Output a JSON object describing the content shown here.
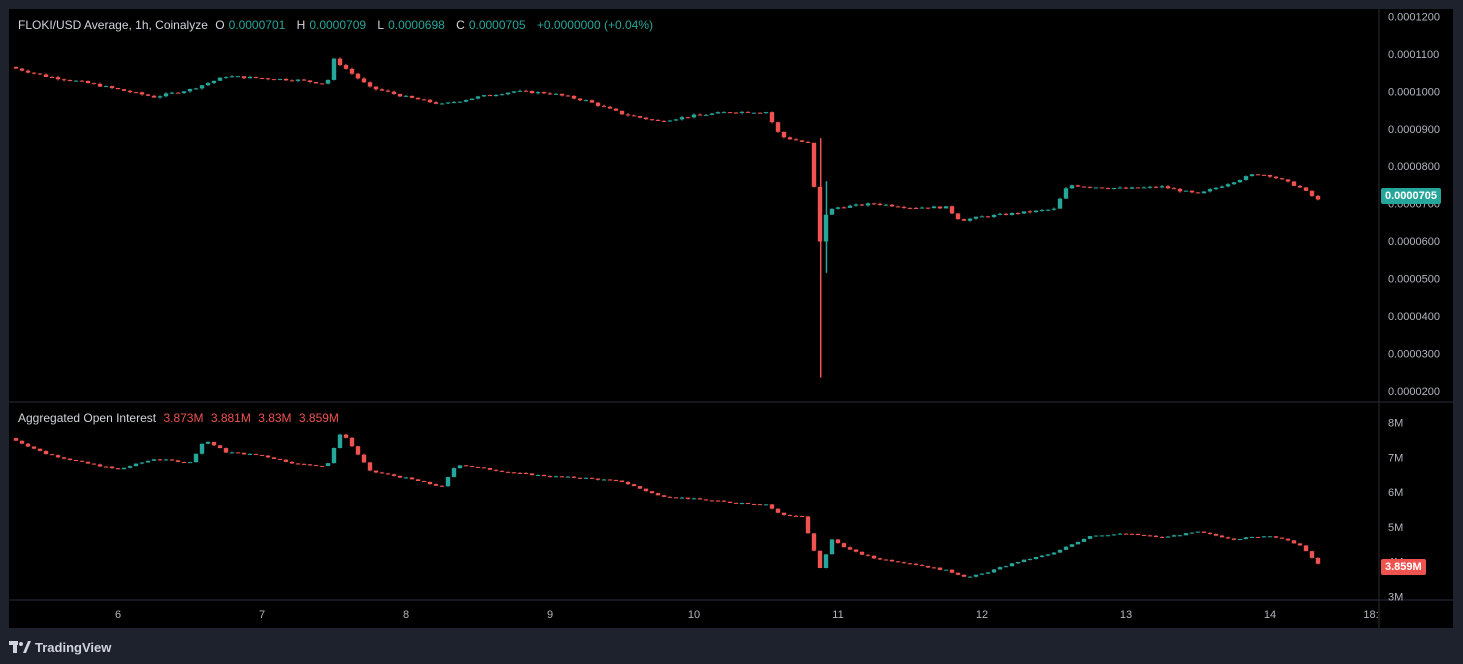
{
  "colors": {
    "up": "#26a69a",
    "down": "#ef5350",
    "background": "#000000",
    "frame": "#1e222d",
    "axis_text": "#b2b5be"
  },
  "price_legend": {
    "symbol": "FLOKI/USD Average, 1h, Coinalyze",
    "o_label": "O",
    "o_value": "0.0000701",
    "h_label": "H",
    "h_value": "0.0000709",
    "l_label": "L",
    "l_value": "0.0000698",
    "c_label": "C",
    "c_value": "0.0000705",
    "change": "+0.0000000 (+0.04%)"
  },
  "oi_legend": {
    "title": "Aggregated Open Interest",
    "o_value": "3.873M",
    "h_value": "3.881M",
    "l_value": "3.83M",
    "c_value": "3.859M"
  },
  "price_last_label": "0.0000705",
  "oi_last_label": "3.859M",
  "footer": {
    "brand": "TradingView",
    "logo_icon": "tradingview-logo-icon"
  },
  "chart_data": [
    {
      "type": "line",
      "name": "price",
      "y_axis_ticks": [
        "0.0001200",
        "0.0001100",
        "0.0001000",
        "0.0000900",
        "0.0000800",
        "0.0000700",
        "0.0000600",
        "0.0000500",
        "0.0000400",
        "0.0000300",
        "0.0000200"
      ],
      "y_axis_values": [
        0.00012,
        0.00011,
        0.0001,
        9e-05,
        8e-05,
        7e-05,
        6e-05,
        5e-05,
        4e-05,
        3e-05,
        2e-05
      ],
      "ylim": [
        1.7e-05,
        0.000122
      ],
      "x_axis_ticks": [
        "6",
        "7",
        "8",
        "9",
        "10",
        "11",
        "12",
        "13",
        "14",
        "18:"
      ],
      "x": [
        5.25,
        5.5,
        5.75,
        6.0,
        6.25,
        6.5,
        6.75,
        7.0,
        7.25,
        7.45,
        7.5,
        7.75,
        8.0,
        8.25,
        8.5,
        8.75,
        9.0,
        9.25,
        9.5,
        9.75,
        10.0,
        10.25,
        10.5,
        10.6,
        10.8,
        10.88,
        10.92,
        11.0,
        11.25,
        11.5,
        11.75,
        11.85,
        12.0,
        12.25,
        12.5,
        12.6,
        12.75,
        13.0,
        13.25,
        13.5,
        13.75,
        13.9,
        14.0,
        14.2,
        14.35
      ],
      "y": [
        0.0001065,
        0.000104,
        0.0001025,
        0.0001005,
        9.85e-05,
        0.0001005,
        0.000104,
        0.0001035,
        0.000103,
        0.000102,
        0.0001085,
        0.000101,
        9.85e-05,
        9.65e-05,
        9.85e-05,
        0.0001,
        9.95e-05,
        9.75e-05,
        9.4e-05,
        9.2e-05,
        9.35e-05,
        9.45e-05,
        9.45e-05,
        8.8e-05,
        8.6e-05,
        5.8e-05,
        6.8e-05,
        6.9e-05,
        7e-05,
        6.9e-05,
        6.9e-05,
        6.55e-05,
        6.65e-05,
        6.75e-05,
        6.85e-05,
        7.5e-05,
        7.45e-05,
        7.4e-05,
        7.45e-05,
        7.25e-05,
        7.6e-05,
        7.8e-05,
        7.75e-05,
        7.45e-05,
        7.05e-05
      ],
      "spike": {
        "x": 10.88,
        "high": 8.75e-05,
        "low": 2.35e-05
      },
      "y_scale": "linear"
    },
    {
      "type": "line",
      "name": "Aggregated Open Interest",
      "y_axis_ticks": [
        "8M",
        "7M",
        "6M",
        "5M",
        "4M",
        "3M"
      ],
      "y_axis_values": [
        8,
        7,
        6,
        5,
        4,
        3
      ],
      "ylim": [
        2.9,
        8.3
      ],
      "x": [
        5.25,
        5.5,
        5.75,
        6.0,
        6.25,
        6.5,
        6.6,
        6.75,
        7.0,
        7.25,
        7.45,
        7.55,
        7.75,
        8.0,
        8.25,
        8.35,
        8.5,
        8.75,
        9.0,
        9.25,
        9.5,
        9.75,
        10.0,
        10.25,
        10.5,
        10.6,
        10.75,
        10.88,
        10.95,
        11.1,
        11.25,
        11.5,
        11.75,
        11.9,
        12.0,
        12.25,
        12.5,
        12.6,
        12.75,
        13.0,
        13.25,
        13.5,
        13.75,
        14.0,
        14.2,
        14.35
      ],
      "y": [
        7.55,
        7.1,
        6.85,
        6.65,
        6.95,
        6.85,
        7.5,
        7.15,
        7.05,
        6.8,
        6.75,
        7.75,
        6.6,
        6.4,
        6.15,
        6.8,
        6.7,
        6.55,
        6.45,
        6.4,
        6.3,
        5.9,
        5.8,
        5.7,
        5.65,
        5.35,
        5.3,
        3.75,
        4.65,
        4.3,
        4.1,
        3.95,
        3.75,
        3.55,
        3.65,
        4.0,
        4.25,
        4.45,
        4.75,
        4.8,
        4.7,
        4.85,
        4.65,
        4.75,
        4.5,
        3.86
      ],
      "y_scale": "linear"
    }
  ]
}
